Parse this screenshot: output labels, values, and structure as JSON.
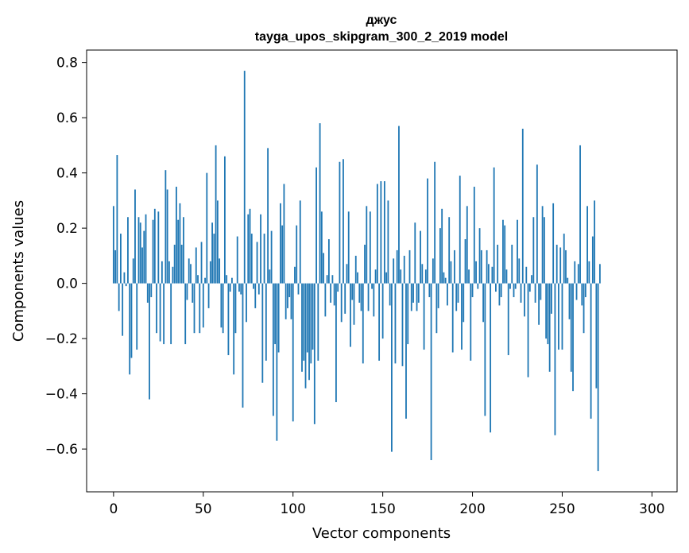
{
  "chart_data": {
    "type": "bar",
    "title": "джус",
    "subtitle": "tayga_upos_skipgram_300_2_2019 model",
    "xlabel": "Vector components",
    "ylabel": "Components values",
    "xlim": [
      -15,
      314
    ],
    "ylim": [
      -0.755,
      0.845
    ],
    "xticks": [
      0,
      50,
      100,
      150,
      200,
      250,
      300
    ],
    "xtick_labels": [
      "0",
      "50",
      "100",
      "150",
      "200",
      "250",
      "300"
    ],
    "yticks": [
      0.8,
      0.6,
      0.4,
      0.2,
      0.0,
      -0.2,
      -0.4,
      -0.6
    ],
    "ytick_labels": [
      "0.8",
      "0.6",
      "0.4",
      "0.2",
      "0.0",
      "−0.2",
      "−0.4",
      "−0.6"
    ],
    "grid": false,
    "bar_color": "#1f77b4",
    "values": [
      0.28,
      0.12,
      0.465,
      -0.1,
      0.18,
      -0.19,
      0.04,
      -0.01,
      0.24,
      -0.33,
      -0.27,
      0.09,
      0.34,
      -0.24,
      0.24,
      0.22,
      0.13,
      0.19,
      0.25,
      -0.07,
      -0.42,
      -0.05,
      0.23,
      0.27,
      -0.18,
      0.26,
      -0.21,
      0.08,
      -0.22,
      0.41,
      0.34,
      0.08,
      -0.22,
      0.06,
      0.14,
      0.35,
      0.23,
      0.29,
      0.14,
      0.24,
      -0.22,
      -0.06,
      0.09,
      0.07,
      -0.07,
      -0.18,
      0.13,
      0.03,
      -0.18,
      0.15,
      -0.16,
      0.02,
      0.4,
      -0.09,
      0.08,
      0.22,
      0.18,
      0.5,
      0.3,
      0.09,
      -0.16,
      -0.18,
      0.46,
      0.03,
      -0.26,
      -0.03,
      0.02,
      -0.33,
      -0.18,
      0.17,
      -0.03,
      -0.04,
      -0.45,
      0.77,
      -0.14,
      0.25,
      0.27,
      0.18,
      -0.02,
      -0.09,
      0.15,
      -0.04,
      0.25,
      -0.36,
      0.18,
      -0.28,
      0.49,
      0.05,
      0.19,
      -0.48,
      -0.22,
      -0.57,
      -0.25,
      0.29,
      0.21,
      0.36,
      -0.13,
      -0.09,
      -0.05,
      -0.13,
      -0.5,
      0.06,
      0.21,
      -0.04,
      0.3,
      -0.32,
      -0.28,
      -0.38,
      -0.25,
      -0.35,
      -0.29,
      -0.24,
      -0.51,
      0.42,
      -0.28,
      0.58,
      0.26,
      0.11,
      -0.12,
      0.03,
      0.16,
      -0.07,
      0.03,
      -0.08,
      -0.43,
      -0.03,
      0.44,
      -0.14,
      0.45,
      -0.11,
      0.07,
      0.26,
      -0.23,
      -0.06,
      -0.15,
      0.1,
      0.04,
      -0.07,
      -0.1,
      -0.29,
      0.14,
      0.28,
      -0.1,
      0.26,
      -0.02,
      -0.12,
      0.05,
      0.36,
      -0.28,
      0.37,
      -0.2,
      0.37,
      0.04,
      0.3,
      -0.08,
      -0.61,
      0.09,
      -0.29,
      0.12,
      0.57,
      0.05,
      -0.3,
      0.1,
      -0.49,
      -0.22,
      0.12,
      -0.1,
      -0.07,
      0.22,
      -0.1,
      -0.07,
      0.19,
      0.07,
      -0.24,
      0.05,
      0.38,
      -0.05,
      -0.64,
      0.09,
      0.44,
      -0.18,
      -0.09,
      0.2,
      0.27,
      0.04,
      0.02,
      -0.08,
      0.24,
      0.08,
      -0.25,
      0.12,
      -0.1,
      -0.07,
      0.39,
      -0.24,
      -0.14,
      0.16,
      0.28,
      0.05,
      -0.28,
      -0.05,
      0.35,
      0.08,
      -0.02,
      0.2,
      0.12,
      -0.14,
      -0.48,
      0.12,
      0.07,
      -0.54,
      0.06,
      0.42,
      -0.03,
      0.14,
      -0.08,
      -0.05,
      0.23,
      0.21,
      0.05,
      -0.26,
      -0.02,
      0.14,
      -0.05,
      -0.02,
      0.23,
      0.09,
      -0.07,
      0.56,
      -0.12,
      0.06,
      -0.34,
      -0.03,
      0.03,
      0.24,
      -0.07,
      0.43,
      -0.15,
      -0.06,
      0.28,
      0.24,
      -0.2,
      -0.22,
      -0.32,
      -0.11,
      0.29,
      -0.55,
      0.14,
      -0.24,
      0.13,
      -0.24,
      0.18,
      0.12,
      0.02,
      -0.13,
      -0.32,
      -0.39,
      0.08,
      -0.06,
      0.07,
      0.5,
      -0.08,
      -0.18,
      -0.05,
      0.28,
      0.08,
      -0.49,
      0.17,
      0.3,
      -0.38,
      -0.68,
      0.07
    ]
  }
}
